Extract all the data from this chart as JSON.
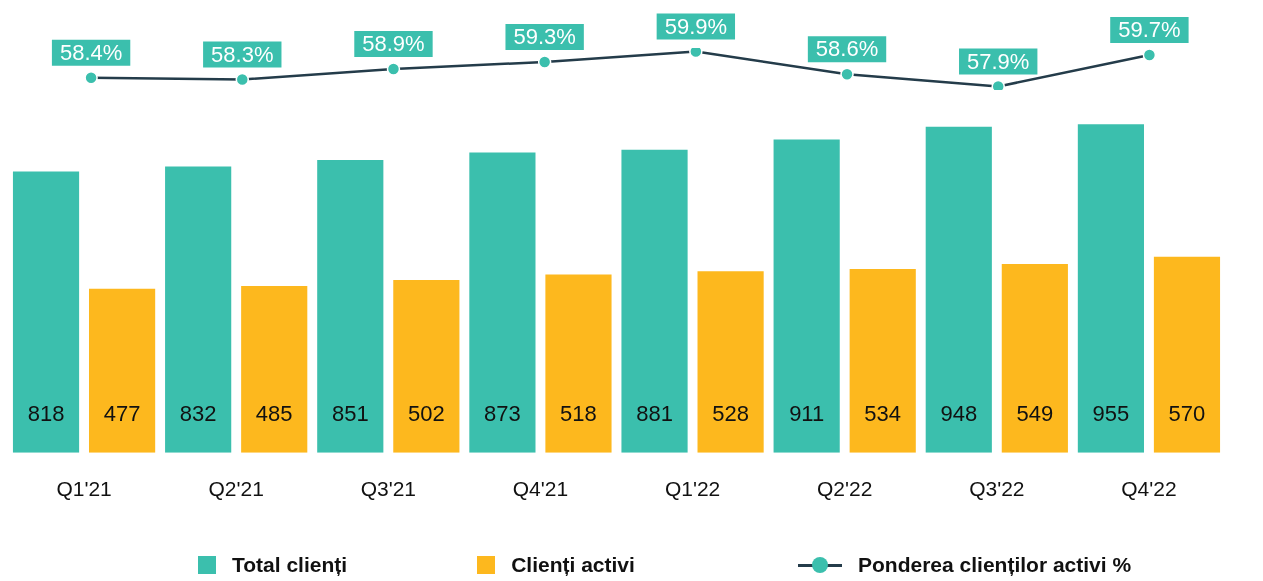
{
  "chart_data": [
    {
      "type": "bar",
      "categories": [
        "Q1'21",
        "Q2'21",
        "Q3'21",
        "Q4'21",
        "Q1'22",
        "Q2'22",
        "Q3'22",
        "Q4'22"
      ],
      "series": [
        {
          "name": "Total clienți",
          "color": "#3bbfad",
          "values": [
            818,
            832,
            851,
            873,
            881,
            911,
            948,
            955
          ]
        },
        {
          "name": "Clienți activi",
          "color": "#fdb81e",
          "values": [
            477,
            485,
            502,
            518,
            528,
            534,
            549,
            570
          ]
        }
      ],
      "data_labels": true,
      "legend": "bottom",
      "grid": false
    },
    {
      "type": "line",
      "categories": [
        null,
        null,
        null,
        null,
        null,
        null,
        null,
        null
      ],
      "tick_labels": false,
      "series": [
        {
          "name": "Ponderea clienților activi %",
          "color": "#243c4a",
          "values": [
            58.4,
            58.3,
            58.9,
            59.3,
            59.9,
            58.6,
            57.9,
            59.7
          ],
          "value_labels": [
            "58.4%",
            "58.3%",
            "58.9%",
            "59.3%",
            "59.9%",
            "58.6%",
            "57.9%",
            "59.7%"
          ]
        }
      ],
      "marker": "circle",
      "legend": "bottom",
      "grid": false
    }
  ]
}
